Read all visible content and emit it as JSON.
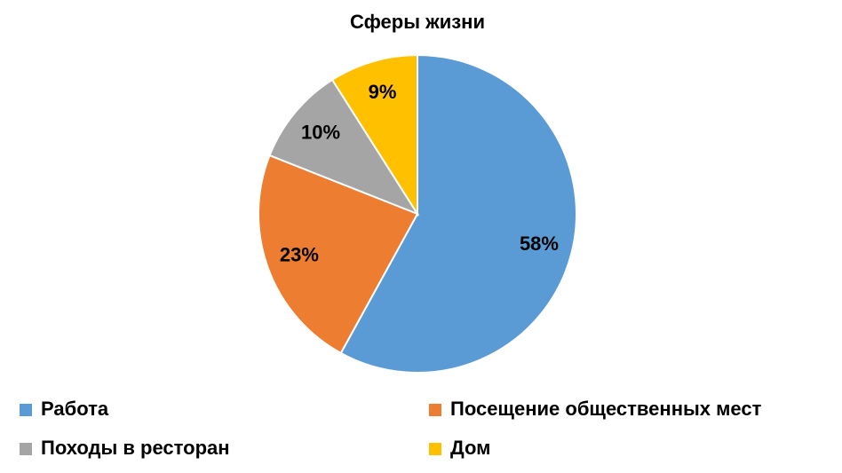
{
  "chart_data": {
    "type": "pie",
    "title": "Сферы жизни",
    "categories": [
      "Работа",
      "Посещение общественных мест",
      "Походы в ресторан",
      "Дом"
    ],
    "values": [
      58,
      23,
      10,
      9
    ],
    "value_labels": [
      "58%",
      "23%",
      "10%",
      "9%"
    ],
    "colors": [
      "#5b9bd5",
      "#ed7d31",
      "#a5a5a5",
      "#ffc000"
    ],
    "legend": "bottom"
  }
}
